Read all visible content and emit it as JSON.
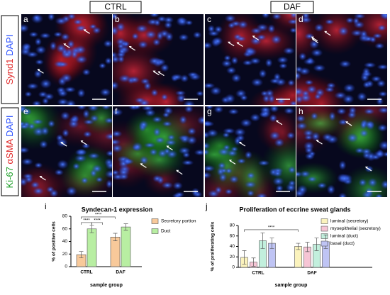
{
  "figure": {
    "groups": [
      "CTRL",
      "DAF"
    ],
    "panels": [
      "a",
      "b",
      "c",
      "d",
      "e",
      "f",
      "g",
      "h"
    ],
    "row_labels": [
      [
        {
          "text": "Synd1",
          "color": "#e02828"
        },
        {
          "text": "DAPI",
          "color": "#2a50ff"
        }
      ],
      [
        {
          "text": "Ki-67",
          "color": "#1fa02a"
        },
        {
          "text": "αSMA",
          "color": "#e02828"
        },
        {
          "text": "DAPI",
          "color": "#2a50ff"
        }
      ]
    ]
  },
  "chart_data": [
    {
      "type": "bar",
      "panel": "i",
      "title": "Syndecan-1 expression",
      "y_label": "% of positive cells",
      "x_label": "sample group",
      "categories": [
        "CTRL",
        "DAF"
      ],
      "series": [
        {
          "name": "Secretory portion",
          "color": "#f8c99a",
          "values": [
            19,
            47
          ],
          "errors": [
            5,
            6
          ]
        },
        {
          "name": "Duct",
          "color": "#b8eea2",
          "values": [
            60,
            63
          ],
          "errors": [
            6,
            5
          ]
        }
      ],
      "ylim": [
        0,
        80
      ],
      "yticks": [
        0,
        20,
        40,
        60,
        80
      ],
      "annotations": [
        "****",
        "****",
        "****"
      ]
    },
    {
      "type": "bar",
      "panel": "j",
      "title": "Proliferation of eccrine sweat glands",
      "y_label": "% of proliferating cells",
      "x_label": "sample group",
      "categories": [
        "CTRL",
        "DAF"
      ],
      "series": [
        {
          "name": "luminal (secretory)",
          "color": "#fbf3bd",
          "values": [
            19,
            40
          ],
          "errors": [
            13,
            6
          ]
        },
        {
          "name": "myoepithelial (secretory)",
          "color": "#f6c5d5",
          "values": [
            10,
            39
          ],
          "errors": [
            8,
            9
          ]
        },
        {
          "name": "luminal (duct)",
          "color": "#c2efdd",
          "values": [
            51,
            44
          ],
          "errors": [
            15,
            12
          ]
        },
        {
          "name": "basal (duct)",
          "color": "#bfc4f4",
          "values": [
            46,
            49
          ],
          "errors": [
            10,
            13
          ]
        }
      ],
      "ylim": [
        0,
        80
      ],
      "yticks": [
        0,
        20,
        40,
        60,
        80
      ],
      "annotations": [
        "****"
      ]
    }
  ]
}
